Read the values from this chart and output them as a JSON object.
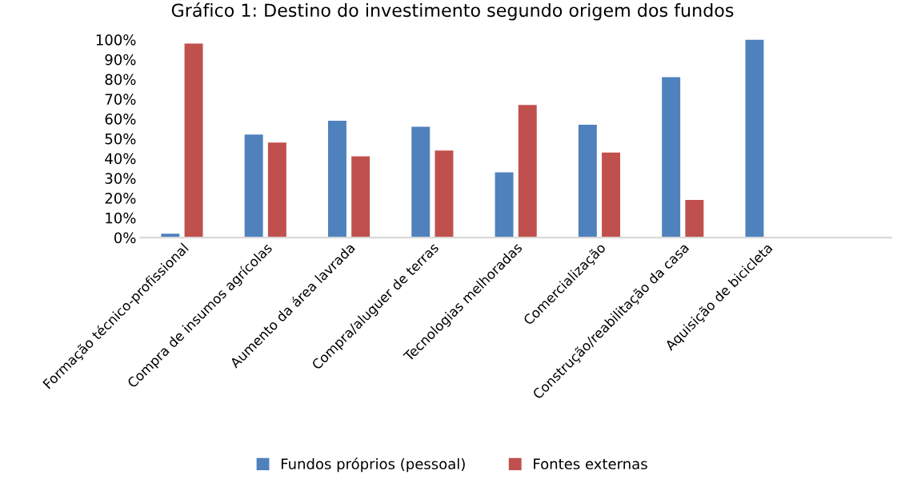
{
  "chart_data": {
    "type": "bar",
    "title": "Gráfico 1: Destino do investimento segundo origem dos fundos",
    "categories": [
      "Formação técnico-profissional",
      "Compra de insumos agrícolas",
      "Aumento da área lavrada",
      "Compra/aluguer de terras",
      "Tecnologias melhoradas",
      "Comercialização",
      "Construção/reabilitação da casa",
      "Aquisição de bicicleta",
      null
    ],
    "series": [
      {
        "name": "Fundos próprios (pessoal)",
        "color": "#4f81bd",
        "values": [
          2,
          52,
          59,
          56,
          33,
          57,
          81,
          100,
          null
        ]
      },
      {
        "name": "Fontes externas",
        "color": "#c0504d",
        "values": [
          98,
          48,
          41,
          44,
          67,
          43,
          19,
          null,
          null
        ]
      }
    ],
    "ylim": [
      0,
      100
    ],
    "yticks": [
      {
        "value": 0,
        "label": "0%"
      },
      {
        "value": 10,
        "label": "10%"
      },
      {
        "value": 20,
        "label": "20%"
      },
      {
        "value": 30,
        "label": "30%"
      },
      {
        "value": 40,
        "label": "40%"
      },
      {
        "value": 50,
        "label": "50%"
      },
      {
        "value": 60,
        "label": "60%"
      },
      {
        "value": 70,
        "label": "70%"
      },
      {
        "value": 80,
        "label": "80%"
      },
      {
        "value": 90,
        "label": "90%"
      },
      {
        "value": 100,
        "label": "100%"
      }
    ],
    "grid": false,
    "legend": "bottom"
  }
}
